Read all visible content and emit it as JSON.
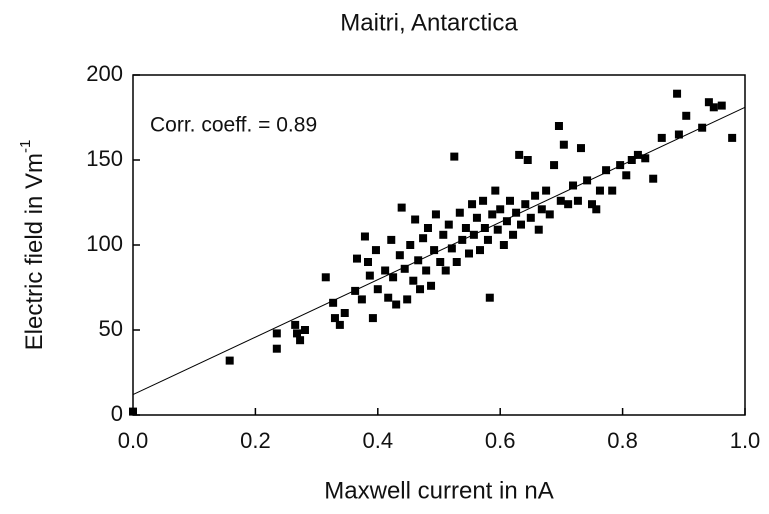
{
  "chart_data": {
    "type": "scatter",
    "title": "Maitri, Antarctica",
    "x_label": "Maxwell current in nA",
    "y_label": "Electric field in Vm",
    "y_label_sup": "-1",
    "annotation": "Corr. coeff. = 0.89",
    "xlim": [
      0,
      1
    ],
    "ylim": [
      0,
      200
    ],
    "xticks": [
      {
        "value": 0,
        "label": "0.0"
      },
      0.2,
      0.4,
      0.6,
      0.8,
      {
        "value": 1,
        "label": "1.0"
      }
    ],
    "yticks": [
      0,
      50,
      100,
      150,
      200
    ],
    "color": "#000000",
    "fit": {
      "x": [
        0,
        1
      ],
      "y": [
        12,
        181
      ]
    },
    "x": [
      0,
      0.158,
      0.235,
      0.235,
      0.265,
      0.268,
      0.273,
      0.281,
      0.315,
      0.327,
      0.33,
      0.338,
      0.346,
      0.363,
      0.366,
      0.374,
      0.379,
      0.384,
      0.387,
      0.392,
      0.397,
      0.4,
      0.412,
      0.417,
      0.422,
      0.425,
      0.43,
      0.436,
      0.439,
      0.444,
      0.448,
      0.453,
      0.458,
      0.461,
      0.466,
      0.469,
      0.474,
      0.479,
      0.482,
      0.487,
      0.492,
      0.495,
      0.502,
      0.507,
      0.511,
      0.516,
      0.521,
      0.525,
      0.529,
      0.534,
      0.538,
      0.544,
      0.549,
      0.554,
      0.557,
      0.562,
      0.567,
      0.572,
      0.575,
      0.58,
      0.583,
      0.587,
      0.592,
      0.596,
      0.6,
      0.606,
      0.611,
      0.616,
      0.621,
      0.626,
      0.631,
      0.634,
      0.641,
      0.645,
      0.65,
      0.657,
      0.663,
      0.668,
      0.675,
      0.681,
      0.688,
      0.696,
      0.699,
      0.704,
      0.711,
      0.719,
      0.727,
      0.732,
      0.742,
      0.75,
      0.757,
      0.763,
      0.773,
      0.783,
      0.796,
      0.806,
      0.815,
      0.825,
      0.837,
      0.85,
      0.864,
      0.892,
      0.889,
      0.904,
      0.93,
      0.941,
      0.949,
      0.962,
      0.979
    ],
    "values": [
      2,
      32,
      39,
      48,
      53,
      48,
      44,
      50,
      81,
      66,
      57,
      53,
      60,
      73,
      92,
      68,
      105,
      90,
      82,
      57,
      97,
      74,
      85,
      69,
      103,
      81,
      65,
      94,
      122,
      86,
      68,
      100,
      79,
      115,
      91,
      74,
      104,
      85,
      110,
      76,
      97,
      118,
      90,
      106,
      85,
      112,
      98,
      152,
      90,
      119,
      103,
      110,
      95,
      124,
      106,
      116,
      97,
      126,
      110,
      103,
      69,
      118,
      132,
      109,
      121,
      100,
      114,
      126,
      106,
      119,
      153,
      112,
      124,
      150,
      116,
      129,
      109,
      121,
      132,
      118,
      147,
      170,
      126,
      159,
      124,
      135,
      126,
      157,
      138,
      124,
      121,
      132,
      144,
      132,
      147,
      141,
      150,
      153,
      151,
      139,
      163,
      165,
      189,
      176,
      169,
      184,
      181,
      182,
      163
    ]
  }
}
